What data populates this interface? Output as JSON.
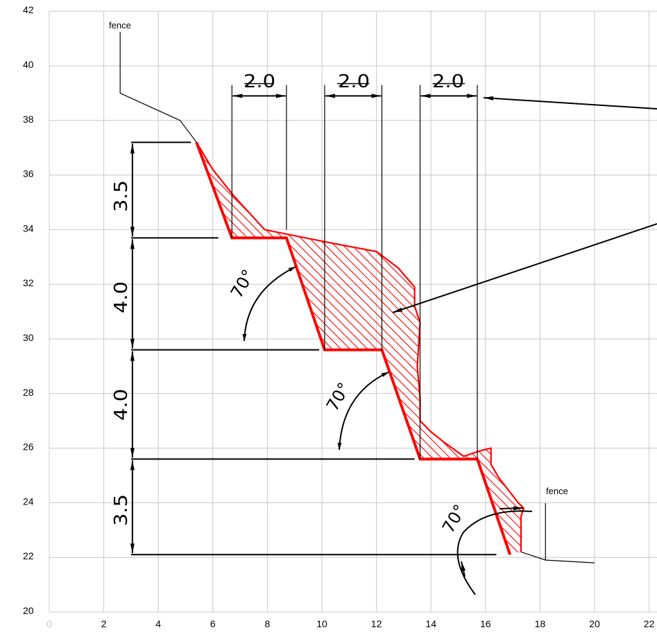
{
  "x_axis": {
    "ticks": [
      "0",
      "2",
      "4",
      "6",
      "8",
      "10",
      "12",
      "14",
      "16",
      "18",
      "20",
      "22"
    ],
    "range": [
      0,
      22
    ]
  },
  "y_axis": {
    "ticks": [
      "20",
      "22",
      "24",
      "26",
      "28",
      "30",
      "32",
      "34",
      "36",
      "38",
      "40",
      "42"
    ],
    "range": [
      20,
      42
    ]
  },
  "grid": true,
  "labels": {
    "fence_top": "fence",
    "fence_bottom": "fence"
  },
  "dimensions": {
    "widths": [
      "2.0",
      "2.0",
      "2.0"
    ],
    "heights": [
      "3.5",
      "4.0",
      "4.0",
      "3.5"
    ],
    "angles": [
      "70°",
      "70°",
      "70°"
    ]
  },
  "colors": {
    "excavation": "#ff0000",
    "lines": "#000000",
    "grid": "#c8c8c8",
    "zero_tick": "#c8c8c8"
  },
  "profile": {
    "terrain": [
      [
        2.6,
        39.0
      ],
      [
        4.8,
        38.0
      ],
      [
        5.4,
        37.2
      ],
      [
        6.0,
        36.2
      ],
      [
        6.8,
        35.2
      ],
      [
        7.9,
        34.0
      ],
      [
        8.9,
        33.8
      ],
      [
        10.4,
        33.5
      ],
      [
        12.0,
        33.2
      ],
      [
        12.8,
        32.6
      ],
      [
        13.4,
        31.9
      ],
      [
        13.4,
        31.2
      ],
      [
        13.6,
        30.6
      ],
      [
        13.5,
        29.0
      ],
      [
        13.6,
        27.8
      ],
      [
        13.6,
        27.0
      ],
      [
        14.0,
        26.6
      ],
      [
        14.5,
        26.2
      ],
      [
        15.2,
        25.7
      ],
      [
        15.8,
        25.9
      ],
      [
        16.2,
        26.0
      ],
      [
        16.2,
        25.4
      ],
      [
        16.5,
        24.9
      ],
      [
        17.2,
        24.0
      ],
      [
        17.4,
        23.8
      ],
      [
        17.3,
        23.5
      ],
      [
        17.3,
        22.2
      ],
      [
        18.2,
        21.9
      ],
      [
        20.0,
        21.8
      ]
    ],
    "design_cut": [
      [
        5.4,
        37.2
      ],
      [
        6.7,
        33.7
      ],
      [
        8.7,
        33.7
      ],
      [
        10.1,
        29.6
      ],
      [
        12.2,
        29.6
      ],
      [
        13.6,
        25.6
      ],
      [
        15.7,
        25.6
      ],
      [
        16.9,
        22.1
      ]
    ],
    "bench_levels": [
      37.2,
      33.7,
      29.6,
      25.6,
      22.1
    ]
  }
}
